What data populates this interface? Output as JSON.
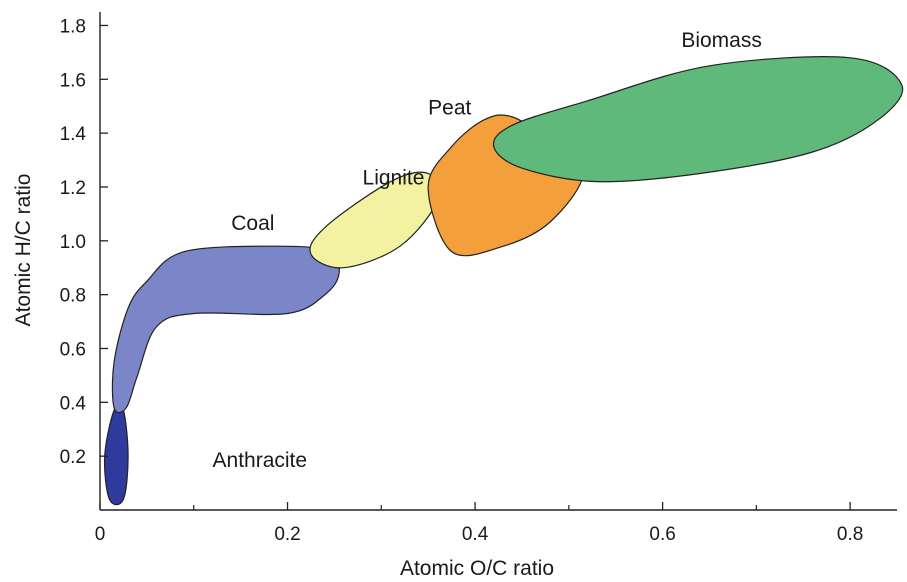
{
  "chart_data": {
    "type": "area",
    "title": "",
    "xlabel": "Atomic O/C ratio",
    "ylabel": "Atomic H/C ratio",
    "xlim": [
      0,
      0.85
    ],
    "ylim": [
      0,
      1.85
    ],
    "x_ticks": [
      {
        "value": 0,
        "label": "0"
      },
      {
        "value": 0.2,
        "label": "0.2"
      },
      {
        "value": 0.4,
        "label": "0.4"
      },
      {
        "value": 0.6,
        "label": "0.6"
      },
      {
        "value": 0.8,
        "label": "0.8"
      }
    ],
    "y_ticks": [
      {
        "value": 0.2,
        "label": "0.2"
      },
      {
        "value": 0.4,
        "label": "0.4"
      },
      {
        "value": 0.6,
        "label": "0.6"
      },
      {
        "value": 0.8,
        "label": "0.8"
      },
      {
        "value": 1.0,
        "label": "1.0"
      },
      {
        "value": 1.2,
        "label": "1.2"
      },
      {
        "value": 1.4,
        "label": "1.4"
      },
      {
        "value": 1.6,
        "label": "1.6"
      },
      {
        "value": 1.8,
        "label": "1.8"
      }
    ],
    "grid": false,
    "legend": "none",
    "series": [
      {
        "name": "Anthracite",
        "color": "#2e3a9c",
        "label_at": [
          0.12,
          0.16
        ],
        "outline": [
          [
            0.015,
            0.37
          ],
          [
            0.025,
            0.37
          ],
          [
            0.03,
            0.2
          ],
          [
            0.025,
            0.04
          ],
          [
            0.01,
            0.04
          ],
          [
            0.005,
            0.2
          ],
          [
            0.015,
            0.37
          ]
        ]
      },
      {
        "name": "Coal",
        "color": "#7b86c9",
        "label_at": [
          0.14,
          1.04
        ],
        "outline": [
          [
            0.015,
            0.38
          ],
          [
            0.028,
            0.38
          ],
          [
            0.04,
            0.5
          ],
          [
            0.06,
            0.68
          ],
          [
            0.1,
            0.73
          ],
          [
            0.2,
            0.73
          ],
          [
            0.24,
            0.8
          ],
          [
            0.255,
            0.88
          ],
          [
            0.245,
            0.96
          ],
          [
            0.19,
            0.98
          ],
          [
            0.09,
            0.96
          ],
          [
            0.05,
            0.85
          ],
          [
            0.03,
            0.75
          ],
          [
            0.015,
            0.55
          ],
          [
            0.015,
            0.38
          ]
        ]
      },
      {
        "name": "Lignite",
        "color": "#f2f2a0",
        "label_at": [
          0.28,
          1.21
        ],
        "outline": [
          [
            0.225,
            0.95
          ],
          [
            0.26,
            0.9
          ],
          [
            0.32,
            0.98
          ],
          [
            0.36,
            1.15
          ],
          [
            0.35,
            1.25
          ],
          [
            0.31,
            1.22
          ],
          [
            0.24,
            1.05
          ],
          [
            0.225,
            0.95
          ]
        ]
      },
      {
        "name": "Peat",
        "color": "#f3a03c",
        "label_at": [
          0.35,
          1.47
        ],
        "outline": [
          [
            0.35,
            1.2
          ],
          [
            0.375,
            0.96
          ],
          [
            0.43,
            0.98
          ],
          [
            0.48,
            1.07
          ],
          [
            0.515,
            1.25
          ],
          [
            0.48,
            1.37
          ],
          [
            0.44,
            1.46
          ],
          [
            0.41,
            1.45
          ],
          [
            0.375,
            1.35
          ],
          [
            0.35,
            1.2
          ]
        ]
      },
      {
        "name": "Biomass",
        "color": "#5fb97a",
        "label_at": [
          0.62,
          1.72
        ],
        "outline": [
          [
            0.42,
            1.35
          ],
          [
            0.45,
            1.27
          ],
          [
            0.53,
            1.22
          ],
          [
            0.64,
            1.25
          ],
          [
            0.76,
            1.33
          ],
          [
            0.83,
            1.45
          ],
          [
            0.855,
            1.58
          ],
          [
            0.8,
            1.68
          ],
          [
            0.65,
            1.65
          ],
          [
            0.52,
            1.52
          ],
          [
            0.44,
            1.43
          ],
          [
            0.42,
            1.35
          ]
        ]
      }
    ]
  }
}
